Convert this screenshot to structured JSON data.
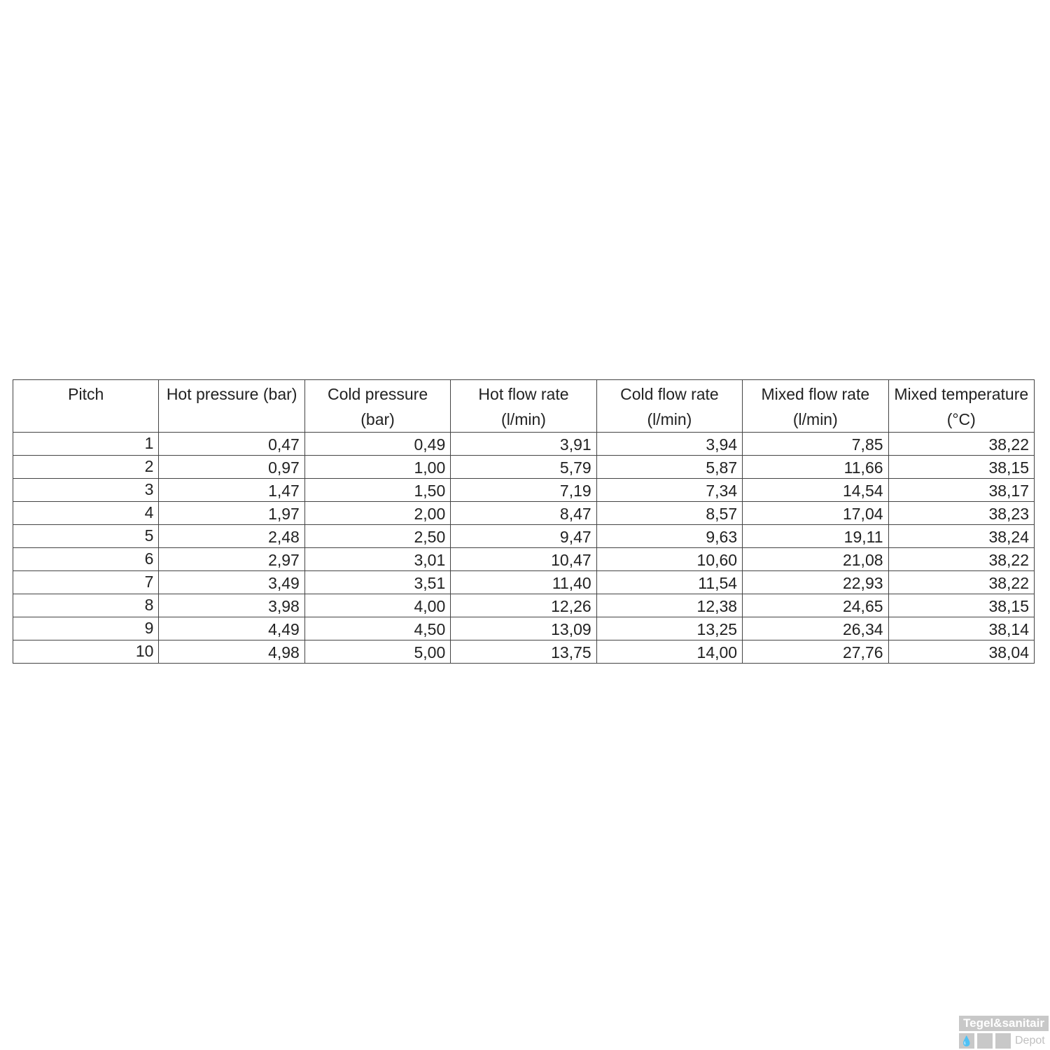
{
  "table": {
    "headers": [
      "Pitch",
      "Hot pressure (bar)",
      "Cold pressure (bar)",
      "Hot flow rate (l/min)",
      "Cold flow rate (l/min)",
      "Mixed flow rate (l/min)",
      "Mixed temperature (°C)"
    ],
    "rows": [
      [
        "1",
        "0,47",
        "0,49",
        "3,91",
        "3,94",
        "7,85",
        "38,22"
      ],
      [
        "2",
        "0,97",
        "1,00",
        "5,79",
        "5,87",
        "11,66",
        "38,15"
      ],
      [
        "3",
        "1,47",
        "1,50",
        "7,19",
        "7,34",
        "14,54",
        "38,17"
      ],
      [
        "4",
        "1,97",
        "2,00",
        "8,47",
        "8,57",
        "17,04",
        "38,23"
      ],
      [
        "5",
        "2,48",
        "2,50",
        "9,47",
        "9,63",
        "19,11",
        "38,24"
      ],
      [
        "6",
        "2,97",
        "3,01",
        "10,47",
        "10,60",
        "21,08",
        "38,22"
      ],
      [
        "7",
        "3,49",
        "3,51",
        "11,40",
        "11,54",
        "22,93",
        "38,22"
      ],
      [
        "8",
        "3,98",
        "4,00",
        "12,26",
        "12,38",
        "24,65",
        "38,15"
      ],
      [
        "9",
        "4,49",
        "4,50",
        "13,09",
        "13,25",
        "26,34",
        "38,14"
      ],
      [
        "10",
        "4,98",
        "5,00",
        "13,75",
        "14,00",
        "27,76",
        "38,04"
      ]
    ]
  },
  "watermark": {
    "brand_top": "Tegel&sanitair",
    "brand_bottom": "Depot",
    "icon": "water-drop-icon"
  }
}
